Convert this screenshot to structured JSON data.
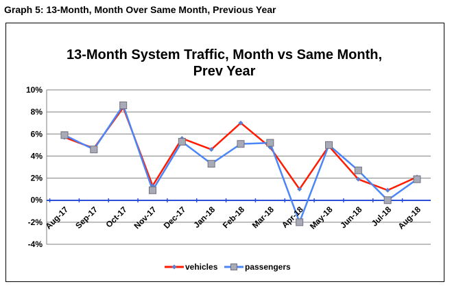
{
  "page": {
    "heading": "Graph 5: 13-Month, Month Over Same Month, Previous Year"
  },
  "chart_data": {
    "type": "line",
    "title_lines": [
      "13-Month System Traffic, Month vs Same Month,",
      "Prev Year"
    ],
    "categories": [
      "Aug-17",
      "Sep-17",
      "Oct-17",
      "Nov-17",
      "Dec-17",
      "Jan-18",
      "Feb-18",
      "Mar-18",
      "Apr-18",
      "May-18",
      "Jun-18",
      "Jul-18",
      "Aug-18"
    ],
    "series": [
      {
        "name": "vehicles",
        "color": "#ff1a00",
        "marker_color": "#5b7fd1",
        "marker": "diamond",
        "values": [
          5.7,
          4.7,
          8.4,
          1.3,
          5.6,
          4.6,
          7.0,
          4.8,
          1.0,
          4.9,
          1.9,
          0.9,
          2.1
        ]
      },
      {
        "name": "passengers",
        "color": "#4a86f7",
        "marker_color": "#a8aab6",
        "marker": "square",
        "values": [
          5.9,
          4.6,
          8.6,
          0.9,
          5.3,
          3.3,
          5.1,
          5.2,
          -2.0,
          5.0,
          2.7,
          0.0,
          1.9
        ]
      }
    ],
    "ylim": [
      -4,
      10
    ],
    "yticks": [
      -4,
      -2,
      0,
      2,
      4,
      6,
      8,
      10
    ],
    "ytick_labels": [
      "-4%",
      "-2%",
      "0%",
      "2%",
      "4%",
      "6%",
      "8%",
      "10%"
    ],
    "grid": true,
    "legend_position": "bottom",
    "xlabel": "",
    "ylabel": ""
  }
}
